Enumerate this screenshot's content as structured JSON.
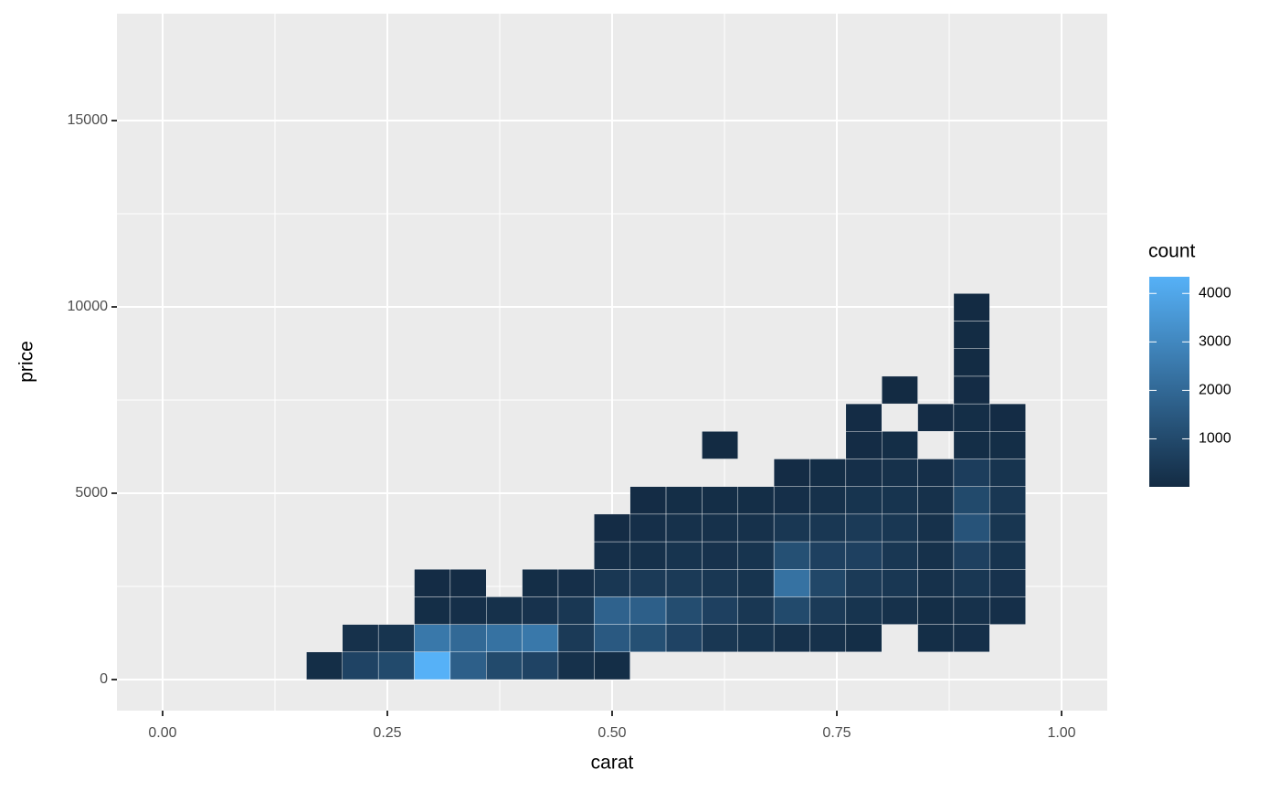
{
  "chart_data": {
    "type": "bin2d",
    "x_label": "carat",
    "y_label": "price",
    "legend_title": "count",
    "xlim": [
      -0.0508,
      1.0508
    ],
    "ylim": [
      -833,
      17868
    ],
    "xticks": [
      {
        "value": 0,
        "label": "0.00"
      },
      {
        "value": 0.25,
        "label": "0.25"
      },
      {
        "value": 0.5,
        "label": "0.50"
      },
      {
        "value": 0.75,
        "label": "0.75"
      },
      {
        "value": 1,
        "label": "1.00"
      }
    ],
    "yticks": [
      0,
      5000,
      10000,
      15000
    ],
    "legend_ticks": [
      1000,
      2000,
      3000,
      4000
    ],
    "binwidth": [
      0.04,
      740
    ],
    "colors": [
      "#132B43",
      "#56B1F7"
    ],
    "grid": true,
    "cells": {
      "x": [
        0.16,
        0.2,
        0.24,
        0.28,
        0.32,
        0.36,
        0.4,
        0.44,
        0.48,
        0.2,
        0.24,
        0.28,
        0.32,
        0.36,
        0.4,
        0.44,
        0.48,
        0.52,
        0.56,
        0.6,
        0.64,
        0.68,
        0.72,
        0.76,
        0.84,
        0.88,
        0.28,
        0.32,
        0.36,
        0.4,
        0.44,
        0.48,
        0.52,
        0.56,
        0.6,
        0.64,
        0.68,
        0.72,
        0.76,
        0.8,
        0.84,
        0.88,
        0.92,
        0.28,
        0.32,
        0.4,
        0.44,
        0.48,
        0.52,
        0.56,
        0.6,
        0.64,
        0.68,
        0.72,
        0.76,
        0.8,
        0.84,
        0.88,
        0.92,
        0.48,
        0.52,
        0.56,
        0.6,
        0.64,
        0.68,
        0.72,
        0.76,
        0.8,
        0.84,
        0.88,
        0.92,
        0.48,
        0.52,
        0.56,
        0.6,
        0.64,
        0.68,
        0.72,
        0.76,
        0.8,
        0.84,
        0.88,
        0.92,
        0.52,
        0.56,
        0.6,
        0.64,
        0.68,
        0.72,
        0.76,
        0.8,
        0.84,
        0.88,
        0.92,
        0.68,
        0.72,
        0.76,
        0.8,
        0.84,
        0.88,
        0.92,
        0.6,
        0.76,
        0.8,
        0.88,
        0.92,
        0.76,
        0.84,
        0.88,
        0.92,
        0.8,
        0.88,
        0.88,
        0.88,
        0.88
      ],
      "y": [
        0,
        0,
        0,
        0,
        0,
        0,
        0,
        0,
        0,
        740,
        740,
        740,
        740,
        740,
        740,
        740,
        740,
        740,
        740,
        740,
        740,
        740,
        740,
        740,
        740,
        740,
        1480,
        1480,
        1480,
        1480,
        1480,
        1480,
        1480,
        1480,
        1480,
        1480,
        1480,
        1480,
        1480,
        1480,
        1480,
        1480,
        1480,
        2220,
        2220,
        2220,
        2220,
        2220,
        2220,
        2220,
        2220,
        2220,
        2220,
        2220,
        2220,
        2220,
        2220,
        2220,
        2220,
        2960,
        2960,
        2960,
        2960,
        2960,
        2960,
        2960,
        2960,
        2960,
        2960,
        2960,
        2960,
        3700,
        3700,
        3700,
        3700,
        3700,
        3700,
        3700,
        3700,
        3700,
        3700,
        3700,
        3700,
        4440,
        4440,
        4440,
        4440,
        4440,
        4440,
        4440,
        4440,
        4440,
        4440,
        4440,
        5180,
        5180,
        5180,
        5180,
        5180,
        5180,
        5180,
        5920,
        5920,
        5920,
        5920,
        5920,
        6660,
        6660,
        6660,
        6660,
        7400,
        7400,
        8140,
        8880,
        9620
      ],
      "values": [
        100,
        800,
        1000,
        4344,
        1700,
        1000,
        800,
        200,
        100,
        200,
        300,
        2500,
        2000,
        2300,
        2500,
        500,
        1500,
        1200,
        800,
        400,
        300,
        200,
        200,
        100,
        100,
        150,
        100,
        150,
        200,
        250,
        400,
        1800,
        1700,
        1100,
        700,
        400,
        1000,
        500,
        300,
        200,
        100,
        200,
        150,
        50,
        50,
        100,
        150,
        400,
        500,
        500,
        400,
        300,
        2300,
        900,
        500,
        400,
        200,
        400,
        250,
        150,
        200,
        300,
        250,
        300,
        1200,
        700,
        700,
        400,
        200,
        700,
        300,
        50,
        150,
        200,
        200,
        200,
        400,
        400,
        500,
        400,
        200,
        1300,
        350,
        50,
        100,
        100,
        100,
        150,
        200,
        300,
        300,
        200,
        1000,
        400,
        50,
        100,
        150,
        200,
        150,
        600,
        300,
        10,
        50,
        100,
        100,
        100,
        50,
        50,
        100,
        50,
        20,
        50,
        30,
        30,
        20
      ]
    }
  }
}
